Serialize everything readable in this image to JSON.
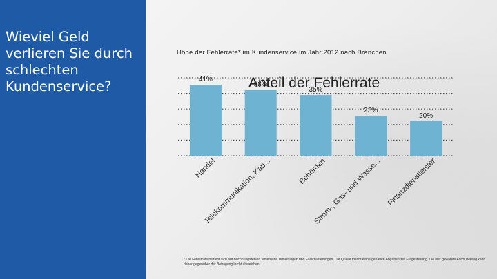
{
  "sidebar": {
    "title": "Wieviel Geld verlieren Sie durch schlechten Kundenservice?"
  },
  "header": {
    "subtitle": "Höhe der Fehlerrate* im Kundenservice im Jahr 2012 nach Branchen"
  },
  "footnote": "* Die Fehlerrate bezieht sich auf Buchhungsfehler, fehlerhafte Umleitungen und Falschlieferungen. Die Quelle macht keine genauen Angaben zur Fragestellung. Die hier gewählte Formulierung kann daher gegenüber der Befragung leicht abweichen.",
  "colors": {
    "panel": "#1f5aa6",
    "bar": "#6fb3d2",
    "grid": "#555555"
  },
  "chart_data": {
    "type": "bar",
    "title": "Anteil der Fehlerrate",
    "categories": [
      "Handel",
      "Telekommunikation, Kab...",
      "Behörden",
      "Strom-, Gas- und Wasse...",
      "Finanzdienstleister"
    ],
    "values": [
      41,
      38,
      35,
      23,
      20
    ],
    "value_labels": [
      "41%",
      "38%",
      "35%",
      "23%",
      "20%"
    ],
    "ylim": [
      0,
      45
    ],
    "grid": true,
    "xlabel": "",
    "ylabel": ""
  }
}
